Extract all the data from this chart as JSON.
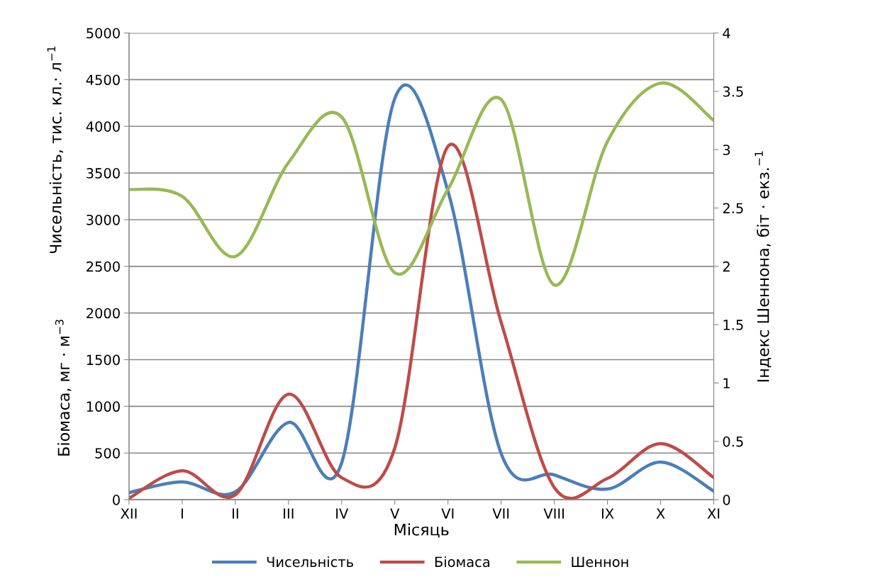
{
  "chart_data": {
    "type": "line",
    "xlabel": "Місяць",
    "ylabel": "Чисельність, тис. кл.· л$^{−1}$",
    "y2label": "Індекс Шеннона, біт · екз.$^{−1}$",
    "annotations": [
      "Біомаса, мг · м$^{−3}$"
    ],
    "categories": [
      "XII",
      "I",
      "II",
      "III",
      "IV",
      "V",
      "VI",
      "VII",
      "VIII",
      "IX",
      "X",
      "XI"
    ],
    "series": [
      {
        "name": "Чисельність",
        "color": "#4a7ebb",
        "values": [
          76,
          190,
          84,
          828,
          395,
          4300,
          3305,
          494,
          266,
          114,
          403,
          91
        ]
      },
      {
        "name": "Біомаса",
        "color": "#be4b48",
        "values": [
          15,
          310,
          53,
          1130,
          235,
          555,
          3785,
          1900,
          130,
          228,
          600,
          236
        ]
      },
      {
        "name": "Шеннон",
        "color": "#98b954",
        "axis": "y2",
        "values": [
          2.66,
          2.6,
          2.085,
          2.89,
          3.28,
          1.945,
          2.66,
          3.43,
          1.84,
          3.07,
          3.57,
          3.25
        ]
      }
    ],
    "ylim": [
      0,
      5000
    ],
    "yticks": [
      0,
      500,
      1000,
      1500,
      2000,
      2500,
      3000,
      3500,
      4000,
      4500,
      5000
    ],
    "y2lim": [
      0,
      4
    ],
    "y2ticks": [
      0,
      0.5,
      1,
      1.5,
      2,
      2.5,
      3,
      3.5,
      4
    ],
    "grid": "y",
    "legend": "bottom",
    "marker": "none",
    "line_style": "solid"
  }
}
